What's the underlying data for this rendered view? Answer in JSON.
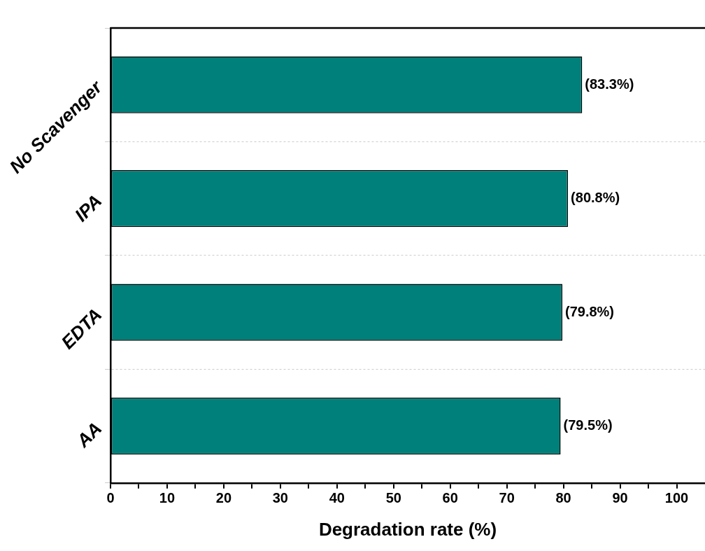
{
  "chart_data": {
    "type": "bar",
    "orientation": "horizontal",
    "xlabel": "Degradation rate (%)",
    "categories": [
      "No Scavenger",
      "IPA",
      "EDTA",
      "AA"
    ],
    "values": [
      83.3,
      80.8,
      79.8,
      79.5
    ],
    "value_labels": [
      "(83.3%)",
      "(80.8%)",
      "(79.8%)",
      "(79.5%)"
    ],
    "color": "#00807a",
    "xlim": [
      0,
      105
    ],
    "xticks": [
      0,
      {
        "value": 5,
        "label": null
      },
      10,
      {
        "value": 15,
        "label": null
      },
      20,
      {
        "value": 25,
        "label": null
      },
      30,
      {
        "value": 35,
        "label": null
      },
      40,
      {
        "value": 45,
        "label": null
      },
      50,
      {
        "value": 55,
        "label": null
      },
      60,
      {
        "value": 65,
        "label": null
      },
      70,
      {
        "value": 75,
        "label": null
      },
      80,
      {
        "value": 85,
        "label": null
      },
      90,
      {
        "value": 95,
        "label": null
      },
      100
    ],
    "grid": "y"
  }
}
